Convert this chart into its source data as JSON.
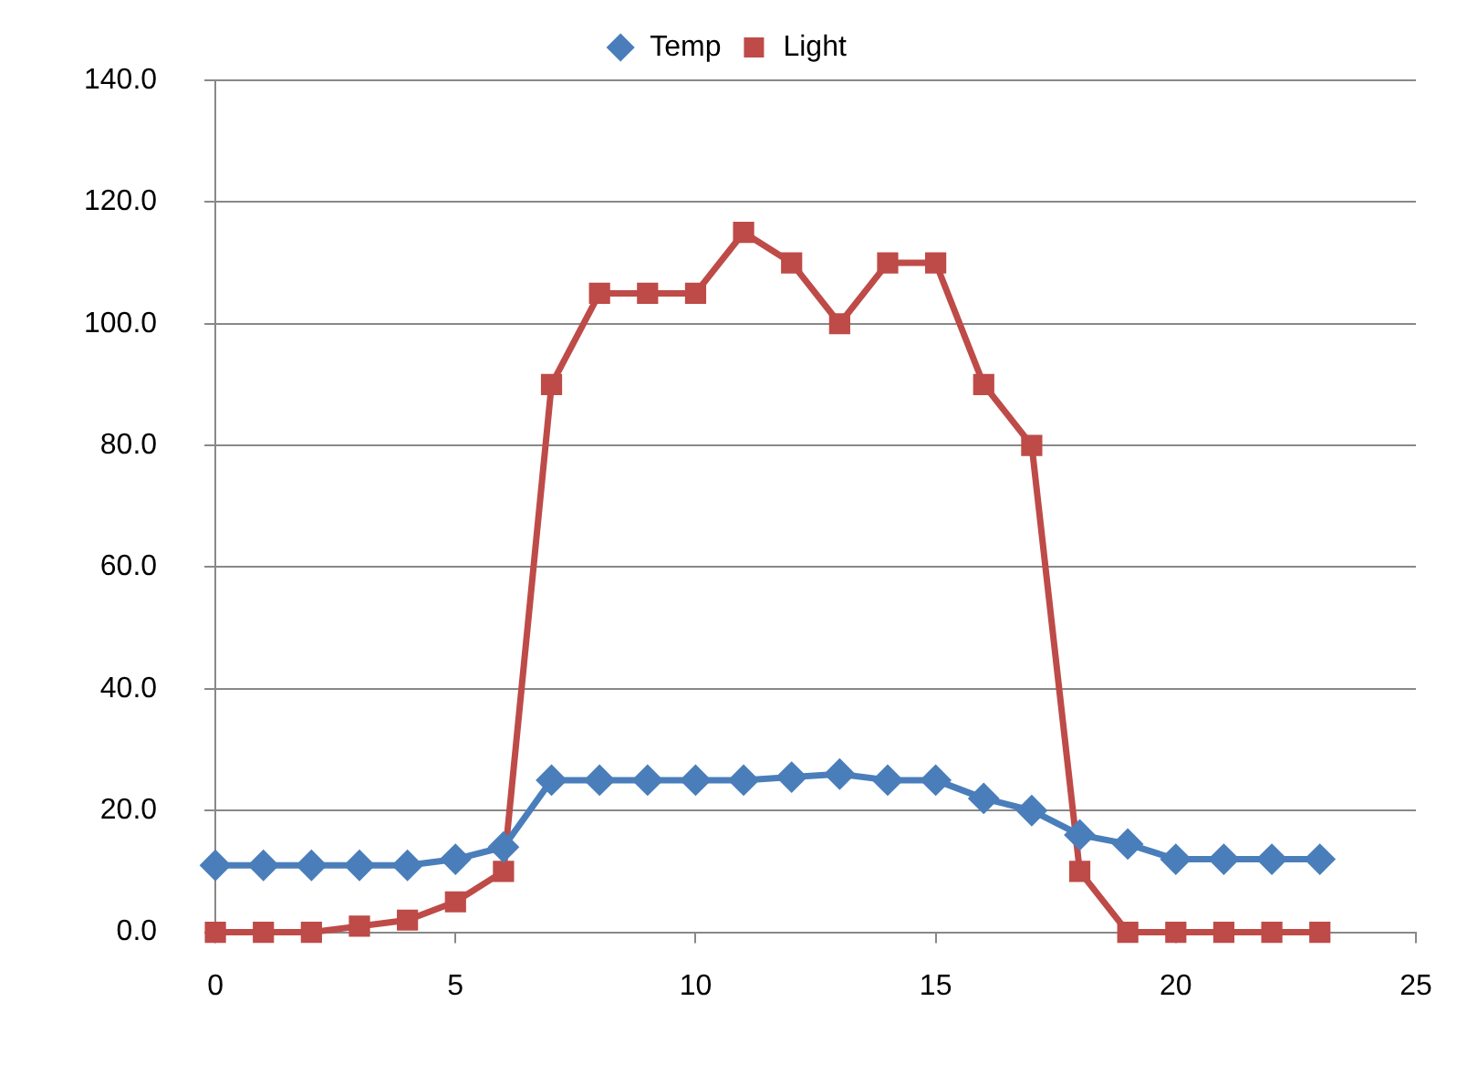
{
  "chart_data": {
    "type": "line",
    "x": [
      0,
      1,
      2,
      3,
      4,
      5,
      6,
      7,
      8,
      9,
      10,
      11,
      12,
      13,
      14,
      15,
      16,
      17,
      18,
      19,
      20,
      21,
      22,
      23
    ],
    "series": [
      {
        "name": "Temp",
        "color": "#4a7ebb",
        "marker": "diamond",
        "values": [
          11,
          11,
          11,
          11,
          11,
          12,
          14,
          25,
          25,
          25,
          25,
          25,
          25.5,
          26,
          25,
          25,
          22,
          20,
          16,
          14.5,
          12,
          12,
          12,
          12
        ]
      },
      {
        "name": "Light",
        "color": "#be4b48",
        "marker": "square",
        "values": [
          0,
          0,
          0,
          1,
          2,
          5,
          10,
          90,
          105,
          105,
          105,
          115,
          110,
          100,
          110,
          110,
          90,
          80,
          10,
          0,
          0,
          0,
          0,
          0
        ]
      }
    ],
    "xlim": [
      0,
      25
    ],
    "xticks": [
      0,
      5,
      10,
      15,
      20,
      25
    ],
    "ylim": [
      0,
      140
    ],
    "yticks": [
      {
        "value": 0,
        "label": "0.0"
      },
      {
        "value": 20,
        "label": "20.0"
      },
      {
        "value": 40,
        "label": "40.0"
      },
      {
        "value": 60,
        "label": "60.0"
      },
      {
        "value": 80,
        "label": "80.0"
      },
      {
        "value": 100,
        "label": "100.0"
      },
      {
        "value": 120,
        "label": "120.0"
      },
      {
        "value": 140,
        "label": "140.0"
      }
    ],
    "grid": "y",
    "legend": "top"
  }
}
